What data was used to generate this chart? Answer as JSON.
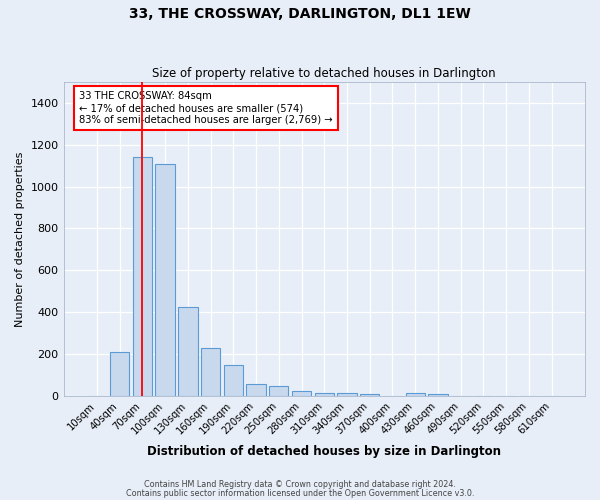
{
  "title": "33, THE CROSSWAY, DARLINGTON, DL1 1EW",
  "subtitle": "Size of property relative to detached houses in Darlington",
  "xlabel": "Distribution of detached houses by size in Darlington",
  "ylabel": "Number of detached properties",
  "bar_color": "#c8d9ee",
  "bar_edge_color": "#5b9bd5",
  "bg_color": "#e8eef8",
  "grid_color": "#ffffff",
  "fig_bg_color": "#e8eef8",
  "categories": [
    "10sqm",
    "40sqm",
    "70sqm",
    "100sqm",
    "130sqm",
    "160sqm",
    "190sqm",
    "220sqm",
    "250sqm",
    "280sqm",
    "310sqm",
    "340sqm",
    "370sqm",
    "400sqm",
    "430sqm",
    "460sqm",
    "490sqm",
    "520sqm",
    "550sqm",
    "580sqm",
    "610sqm"
  ],
  "values": [
    0,
    210,
    1140,
    1110,
    425,
    230,
    145,
    58,
    45,
    22,
    12,
    14,
    10,
    0,
    12,
    10,
    0,
    0,
    0,
    0,
    0
  ],
  "annotation_line1": "33 THE CROSSWAY: 84sqm",
  "annotation_line2": "← 17% of detached houses are smaller (574)",
  "annotation_line3": "83% of semi-detached houses are larger (2,769) →",
  "ylim": [
    0,
    1500
  ],
  "yticks": [
    0,
    200,
    400,
    600,
    800,
    1000,
    1200,
    1400
  ],
  "footnote1": "Contains HM Land Registry data © Crown copyright and database right 2024.",
  "footnote2": "Contains public sector information licensed under the Open Government Licence v3.0."
}
